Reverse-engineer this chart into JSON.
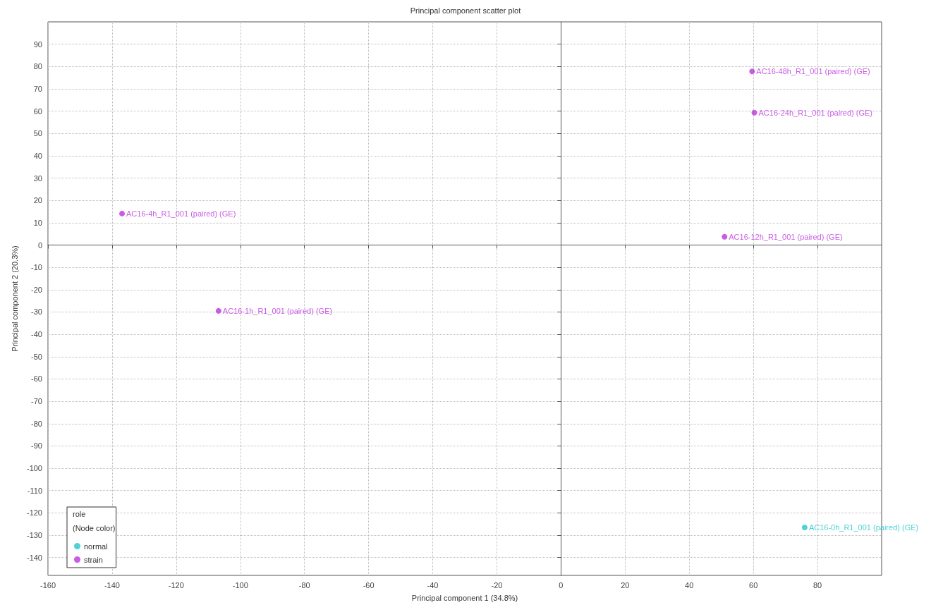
{
  "chart_data": {
    "type": "scatter",
    "title": "Principal component scatter plot",
    "xlabel": "Principal component 1 (34.8%)",
    "ylabel": "Principal component 2 (20.3%)",
    "legend_title": "role\n(Node color)",
    "series": [
      {
        "name": "normal",
        "color": "#22c7cc",
        "x": [
          76
        ],
        "values": [
          -126.5
        ]
      },
      {
        "name": "strain",
        "color": "#bb33dd",
        "x": [
          59.6,
          60.3,
          -136.9,
          51,
          -106.8
        ],
        "values": [
          77.8,
          59.3,
          14.1,
          3.7,
          -29.5
        ]
      }
    ],
    "annotations": [
      {
        "text": "AC16-0h_R1_001 (paired) (GE)",
        "x": 76,
        "y": -126.5
      },
      {
        "text": "AC16-48h_R1_001 (paired) (GE)",
        "x": 59.6,
        "y": 77.8
      },
      {
        "text": "AC16-24h_R1_001 (paired) (GE)",
        "x": 60.3,
        "y": 59.3
      },
      {
        "text": "AC16-4h_R1_001 (paired) (GE)",
        "x": -136.9,
        "y": 14.1
      },
      {
        "text": "AC16-12h_R1_001 (paired) (GE)",
        "x": 51,
        "y": 3.7
      },
      {
        "text": "AC16-1h_R1_001 (paired) (GE)",
        "x": -106.8,
        "y": -29.5
      }
    ],
    "xlim": [
      -160,
      100
    ],
    "xticks": [
      -160,
      -140,
      -120,
      -100,
      -80,
      -60,
      -40,
      -20,
      0,
      20,
      40,
      60,
      80
    ],
    "ylim": [
      -148,
      100
    ],
    "yticks": [
      -140,
      -130,
      -120,
      -110,
      -100,
      -90,
      -80,
      -70,
      -60,
      -50,
      -40,
      -30,
      -20,
      -10,
      0,
      10,
      20,
      30,
      40,
      50,
      60,
      70,
      80,
      90
    ],
    "grid": true,
    "legend": "bottom left",
    "marker": "circle"
  }
}
